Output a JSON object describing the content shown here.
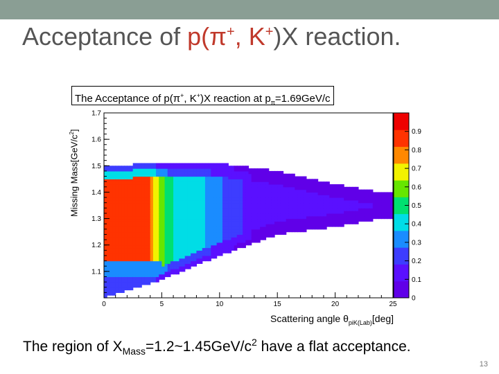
{
  "slide": {
    "title_prefix": "Acceptance of ",
    "title_p": "p(",
    "title_pi": "π",
    "title_plus1": "+",
    "title_mid": ", K",
    "title_plus2": "+",
    "title_suffix": ")X reaction.",
    "caption_a": "The region of X",
    "caption_sub": "Mass",
    "caption_b": "=1.2~1.45GeV/c",
    "caption_sup": "2",
    "caption_c": " have a flat acceptance.",
    "page_number": "13"
  },
  "plot": {
    "title_a": "The Acceptance of p(π",
    "title_sup1": "+",
    "title_b": ", K",
    "title_sup2": "+",
    "title_c": ")X reaction at p",
    "title_sub": "π",
    "title_d": "=1.69GeV/c",
    "ylabel_a": "Missing Mass[GeV/c",
    "ylabel_sup": "2",
    "ylabel_b": "]",
    "xlabel_a": "Scattering angle θ",
    "xlabel_sub": "piK(Lab)",
    "xlabel_b": "[deg]"
  },
  "chart_data": {
    "type": "heatmap",
    "title": "The Acceptance of p(π+, K+)X reaction at pπ=1.69GeV/c",
    "xlabel": "Scattering angle θpiK(Lab)[deg]",
    "ylabel": "Missing Mass[GeV/c2]",
    "xlim": [
      0,
      25
    ],
    "ylim": [
      1.0,
      1.7
    ],
    "x_ticks": [
      "0",
      "5",
      "10",
      "15",
      "20",
      "25"
    ],
    "y_ticks": [
      "1.1",
      "1.2",
      "1.3",
      "1.4",
      "1.5",
      "1.6",
      "1.7"
    ],
    "colorbar": {
      "range": [
        0,
        1
      ],
      "ticks": [
        "0",
        "0.1",
        "0.2",
        "0.3",
        "0.4",
        "0.5",
        "0.6",
        "0.7",
        "0.8",
        "0.9"
      ]
    },
    "acceptance_profile": [
      {
        "x": 0.0,
        "value": 0.9
      },
      {
        "x": 4.0,
        "value": 0.9
      },
      {
        "x": 5.0,
        "value": 0.62
      },
      {
        "x": 6.0,
        "value": 0.5
      },
      {
        "x": 8.0,
        "value": 0.45
      },
      {
        "x": 10.0,
        "value": 0.32
      },
      {
        "x": 12.0,
        "value": 0.2
      },
      {
        "x": 15.0,
        "value": 0.13
      },
      {
        "x": 20.0,
        "value": 0.1
      },
      {
        "x": 25.0,
        "value": 0.1
      }
    ],
    "mass_edges": [
      {
        "x": 0.0,
        "lower": 1.0,
        "upper": 1.5
      },
      {
        "x": 5.0,
        "lower": 1.07,
        "upper": 1.51
      },
      {
        "x": 10.0,
        "lower": 1.16,
        "upper": 1.51
      },
      {
        "x": 15.0,
        "lower": 1.24,
        "upper": 1.48
      },
      {
        "x": 20.0,
        "lower": 1.27,
        "upper": 1.43
      },
      {
        "x": 24.0,
        "lower": 1.3,
        "upper": 1.4
      }
    ],
    "colors": [
      "#6000e8",
      "#5a10ff",
      "#3d3dff",
      "#1a8cff",
      "#00dde6",
      "#00e070",
      "#66e600",
      "#f2f200",
      "#ff8800",
      "#ff3300",
      "#ee0000"
    ]
  }
}
